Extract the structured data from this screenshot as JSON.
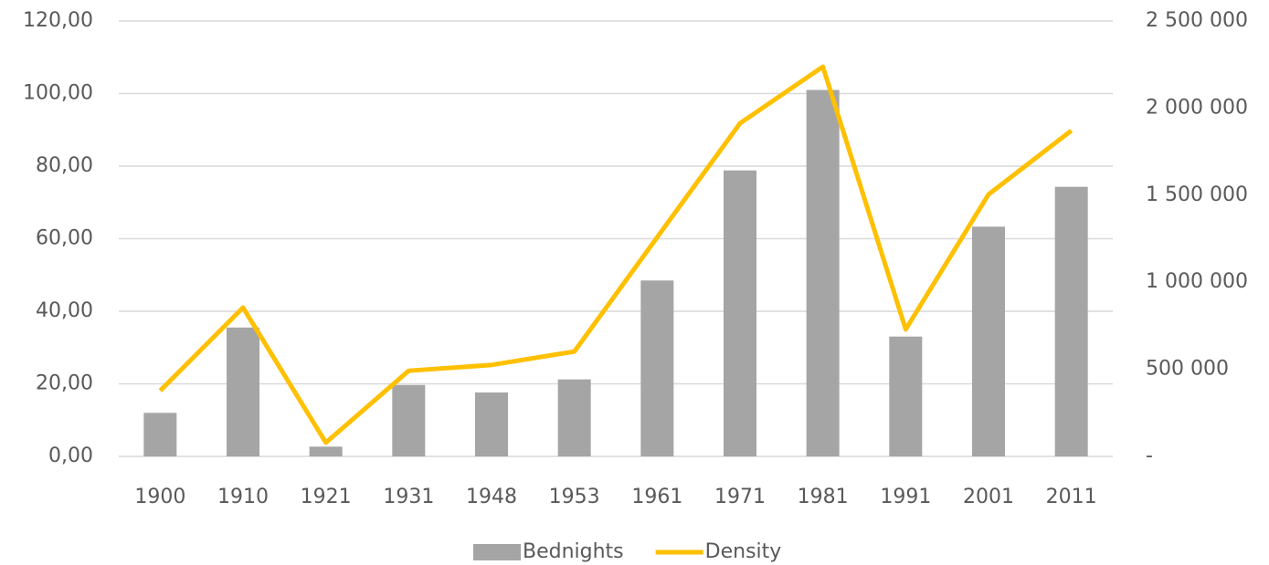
{
  "chart_data": {
    "type": "bar_line",
    "categories": [
      "1900",
      "1910",
      "1921",
      "1931",
      "1948",
      "1953",
      "1961",
      "1971",
      "1981",
      "1991",
      "2001",
      "2011"
    ],
    "series": [
      {
        "name": "Bednights",
        "type": "bar",
        "axis": "y2",
        "color": "#a5a5a5",
        "values": [
          250000,
          740000,
          56000,
          410000,
          367000,
          442000,
          1010000,
          1642000,
          2104000,
          688000,
          1319000,
          1548000
        ]
      },
      {
        "name": "Density",
        "type": "line",
        "axis": "y",
        "color": "#ffc000",
        "values": [
          18.1,
          41.0,
          3.8,
          23.6,
          25.2,
          28.9,
          60.4,
          91.8,
          107.4,
          35.0,
          72.2,
          89.8
        ]
      }
    ],
    "ylim": [
      0,
      120
    ],
    "yticks": [
      {
        "value": 0,
        "label": "0,00"
      },
      {
        "value": 20,
        "label": "20,00"
      },
      {
        "value": 40,
        "label": "40,00"
      },
      {
        "value": 60,
        "label": "60,00"
      },
      {
        "value": 80,
        "label": "80,00"
      },
      {
        "value": 100,
        "label": "100,00"
      },
      {
        "value": 120,
        "label": "120,00"
      }
    ],
    "y2lim": [
      0,
      2500000
    ],
    "y2ticks": [
      {
        "value": 0,
        "label": "-"
      },
      {
        "value": 500000,
        "label": "500 000"
      },
      {
        "value": 1000000,
        "label": "1 000 000"
      },
      {
        "value": 1500000,
        "label": "1 500 000"
      },
      {
        "value": 2000000,
        "label": "2 000 000"
      },
      {
        "value": 2500000,
        "label": "2 500 000"
      }
    ],
    "grid": true,
    "legend": "bottom"
  }
}
